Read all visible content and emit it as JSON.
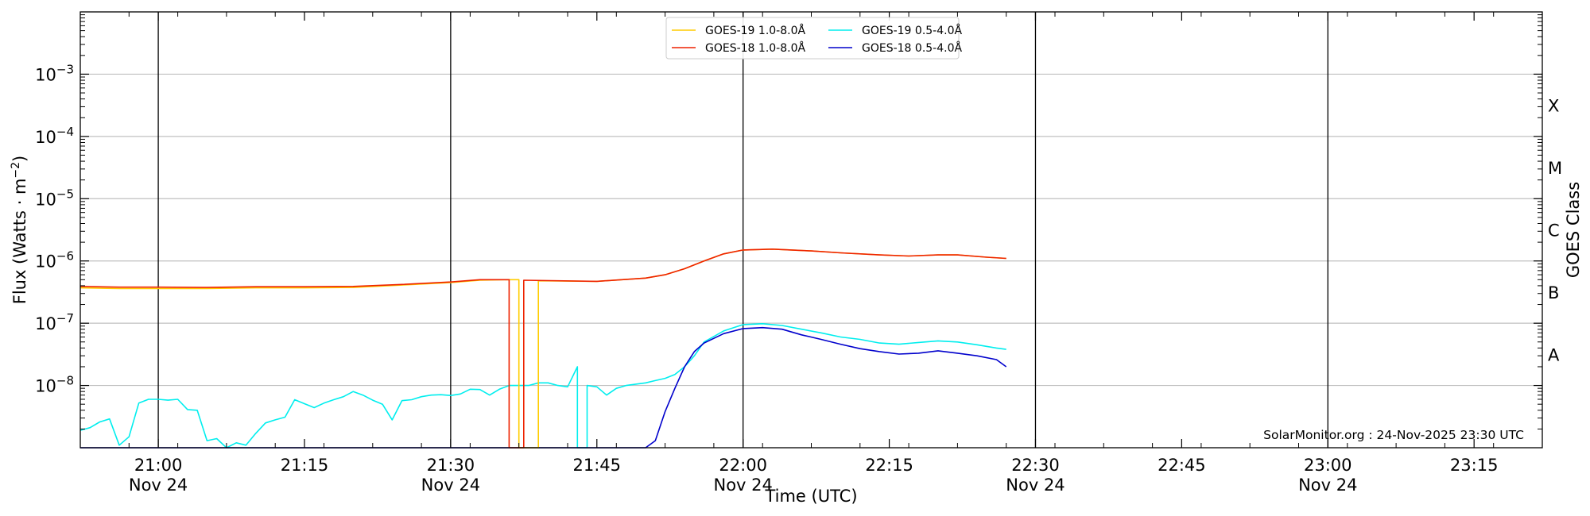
{
  "chart_data": {
    "type": "line",
    "ylabel": "Flux (Watts · m",
    "ylabel_sup": "−2",
    "ylabel_close": ")",
    "xlabel": "Time (UTC)",
    "right_label": "GOES Class",
    "y_scale": "log",
    "ylim": [
      1e-09,
      0.01
    ],
    "xlim": [
      "20:52",
      "23:22"
    ],
    "grid": "horizontal",
    "legend_position": "top-center",
    "y_ticks": [
      {
        "value": 1e-08,
        "base": "10",
        "exp": "−8"
      },
      {
        "value": 1e-07,
        "base": "10",
        "exp": "−7"
      },
      {
        "value": 1e-06,
        "base": "10",
        "exp": "−6"
      },
      {
        "value": 1e-05,
        "base": "10",
        "exp": "−5"
      },
      {
        "value": 0.0001,
        "base": "10",
        "exp": "−4"
      },
      {
        "value": 0.001,
        "base": "10",
        "exp": "−3"
      }
    ],
    "x_ticks": [
      {
        "time": "21:00",
        "label": "21:00",
        "sub": "Nov 24",
        "major": true
      },
      {
        "time": "21:15",
        "label": "21:15",
        "sub": "",
        "major": false
      },
      {
        "time": "21:30",
        "label": "21:30",
        "sub": "Nov 24",
        "major": true
      },
      {
        "time": "21:45",
        "label": "21:45",
        "sub": "",
        "major": false
      },
      {
        "time": "22:00",
        "label": "22:00",
        "sub": "Nov 24",
        "major": true
      },
      {
        "time": "22:15",
        "label": "22:15",
        "sub": "",
        "major": false
      },
      {
        "time": "22:30",
        "label": "22:30",
        "sub": "Nov 24",
        "major": true
      },
      {
        "time": "22:45",
        "label": "22:45",
        "sub": "",
        "major": false
      },
      {
        "time": "23:00",
        "label": "23:00",
        "sub": "Nov 24",
        "major": true
      },
      {
        "time": "23:15",
        "label": "23:15",
        "sub": "",
        "major": false
      }
    ],
    "goes_classes": [
      {
        "label": "A",
        "value": 1e-08
      },
      {
        "label": "B",
        "value": 1e-07
      },
      {
        "label": "C",
        "value": 1e-06
      },
      {
        "label": "M",
        "value": 1e-05
      },
      {
        "label": "X",
        "value": 0.0001
      }
    ],
    "annotation": "SolarMonitor.org : 24-Nov-2025 23:30 UTC",
    "series": [
      {
        "name": "GOES-19 1.0-8.0Å",
        "color": "#ffcc00",
        "points": [
          [
            "20:52",
            3.7e-07
          ],
          [
            "20:56",
            3.6e-07
          ],
          [
            "21:00",
            3.6e-07
          ],
          [
            "21:05",
            3.6e-07
          ],
          [
            "21:10",
            3.7e-07
          ],
          [
            "21:15",
            3.7e-07
          ],
          [
            "21:20",
            3.75e-07
          ],
          [
            "21:25",
            4.1e-07
          ],
          [
            "21:30",
            4.5e-07
          ],
          [
            "21:33",
            4.9e-07
          ],
          [
            "21:36",
            5e-07
          ],
          [
            "21:37",
            5e-07
          ],
          [
            "21:37",
            1e-09
          ],
          [
            "21:39",
            1e-09
          ],
          [
            "21:39",
            4.8e-07
          ],
          [
            "21:45",
            4.7e-07
          ],
          [
            "21:50",
            5.3e-07
          ],
          [
            "21:52",
            6e-07
          ],
          [
            "21:54",
            7.5e-07
          ],
          [
            "21:56",
            1e-06
          ],
          [
            "21:58",
            1.3e-06
          ],
          [
            "22:00",
            1.5e-06
          ],
          [
            "22:03",
            1.55e-06
          ],
          [
            "22:07",
            1.45e-06
          ],
          [
            "22:10",
            1.35e-06
          ],
          [
            "22:14",
            1.25e-06
          ],
          [
            "22:17",
            1.2e-06
          ],
          [
            "22:20",
            1.25e-06
          ],
          [
            "22:22",
            1.25e-06
          ],
          [
            "22:25",
            1.15e-06
          ],
          [
            "22:27",
            1.1e-06
          ]
        ]
      },
      {
        "name": "GOES-18 1.0-8.0Å",
        "color": "#ee2200",
        "points": [
          [
            "20:52",
            3.9e-07
          ],
          [
            "20:56",
            3.8e-07
          ],
          [
            "21:00",
            3.8e-07
          ],
          [
            "21:05",
            3.75e-07
          ],
          [
            "21:10",
            3.85e-07
          ],
          [
            "21:15",
            3.85e-07
          ],
          [
            "21:20",
            3.9e-07
          ],
          [
            "21:25",
            4.2e-07
          ],
          [
            "21:30",
            4.6e-07
          ],
          [
            "21:33",
            5e-07
          ],
          [
            "21:36",
            5e-07
          ],
          [
            "21:36",
            1e-09
          ],
          [
            "21:37.5",
            1e-09
          ],
          [
            "21:37.5",
            4.9e-07
          ],
          [
            "21:45",
            4.7e-07
          ],
          [
            "21:50",
            5.3e-07
          ],
          [
            "21:52",
            6e-07
          ],
          [
            "21:54",
            7.5e-07
          ],
          [
            "21:56",
            1e-06
          ],
          [
            "21:58",
            1.3e-06
          ],
          [
            "22:00",
            1.5e-06
          ],
          [
            "22:03",
            1.55e-06
          ],
          [
            "22:07",
            1.45e-06
          ],
          [
            "22:10",
            1.35e-06
          ],
          [
            "22:14",
            1.25e-06
          ],
          [
            "22:17",
            1.2e-06
          ],
          [
            "22:20",
            1.25e-06
          ],
          [
            "22:22",
            1.25e-06
          ],
          [
            "22:25",
            1.15e-06
          ],
          [
            "22:27",
            1.1e-06
          ]
        ]
      },
      {
        "name": "GOES-19 0.5-4.0Å",
        "color": "#00eeee",
        "points": [
          [
            "20:52",
            1.9e-09
          ],
          [
            "20:53",
            2.1e-09
          ],
          [
            "20:54",
            2.6e-09
          ],
          [
            "20:55",
            2.9e-09
          ],
          [
            "20:56",
            1.1e-09
          ],
          [
            "20:57",
            1.5e-09
          ],
          [
            "20:58",
            5.2e-09
          ],
          [
            "20:59",
            6e-09
          ],
          [
            "21:00",
            6e-09
          ],
          [
            "21:01",
            5.8e-09
          ],
          [
            "21:02",
            6e-09
          ],
          [
            "21:03",
            4.1e-09
          ],
          [
            "21:04",
            4e-09
          ],
          [
            "21:05",
            1.3e-09
          ],
          [
            "21:06",
            1.4e-09
          ],
          [
            "21:07",
            1e-09
          ],
          [
            "21:08",
            1.2e-09
          ],
          [
            "21:09",
            1.1e-09
          ],
          [
            "21:10",
            1.7e-09
          ],
          [
            "21:11",
            2.5e-09
          ],
          [
            "21:12",
            2.8e-09
          ],
          [
            "21:13",
            3.1e-09
          ],
          [
            "21:14",
            5.9e-09
          ],
          [
            "21:16",
            4.4e-09
          ],
          [
            "21:17",
            5.2e-09
          ],
          [
            "21:18",
            5.9e-09
          ],
          [
            "21:19",
            6.6e-09
          ],
          [
            "21:20",
            8e-09
          ],
          [
            "21:21",
            7e-09
          ],
          [
            "21:22",
            5.8e-09
          ],
          [
            "21:23",
            5e-09
          ],
          [
            "21:24",
            2.8e-09
          ],
          [
            "21:25",
            5.7e-09
          ],
          [
            "21:26",
            5.9e-09
          ],
          [
            "21:27",
            6.6e-09
          ],
          [
            "21:28",
            7e-09
          ],
          [
            "21:29",
            7.1e-09
          ],
          [
            "21:30",
            6.9e-09
          ],
          [
            "21:31",
            7.3e-09
          ],
          [
            "21:32",
            8.7e-09
          ],
          [
            "21:33",
            8.6e-09
          ],
          [
            "21:34",
            7e-09
          ],
          [
            "21:35",
            8.7e-09
          ],
          [
            "21:36",
            1e-08
          ],
          [
            "21:37",
            1e-08
          ],
          [
            "21:38",
            1e-08
          ],
          [
            "21:39",
            1.1e-08
          ],
          [
            "21:40",
            1.1e-08
          ],
          [
            "21:41",
            1e-08
          ],
          [
            "21:42",
            9.5e-09
          ],
          [
            "21:43",
            2e-08
          ],
          [
            "21:43",
            1e-09
          ],
          [
            "21:44",
            1e-09
          ],
          [
            "21:44",
            1e-08
          ],
          [
            "21:45",
            9.5e-09
          ],
          [
            "21:46",
            7e-09
          ],
          [
            "21:47",
            9e-09
          ],
          [
            "21:48",
            1e-08
          ],
          [
            "21:49",
            1.05e-08
          ],
          [
            "21:50",
            1.1e-08
          ],
          [
            "21:51",
            1.2e-08
          ],
          [
            "21:52",
            1.3e-08
          ],
          [
            "21:53",
            1.5e-08
          ],
          [
            "21:54",
            2e-08
          ],
          [
            "21:55",
            3e-08
          ],
          [
            "21:56",
            5e-08
          ],
          [
            "21:58",
            7.5e-08
          ],
          [
            "22:00",
            9.5e-08
          ],
          [
            "22:02",
            9.8e-08
          ],
          [
            "22:04",
            9.2e-08
          ],
          [
            "22:06",
            8e-08
          ],
          [
            "22:08",
            7e-08
          ],
          [
            "22:10",
            6e-08
          ],
          [
            "22:12",
            5.5e-08
          ],
          [
            "22:14",
            4.8e-08
          ],
          [
            "22:16",
            4.6e-08
          ],
          [
            "22:18",
            4.9e-08
          ],
          [
            "22:20",
            5.2e-08
          ],
          [
            "22:22",
            5e-08
          ],
          [
            "22:24",
            4.5e-08
          ],
          [
            "22:26",
            4e-08
          ],
          [
            "22:27",
            3.8e-08
          ]
        ]
      },
      {
        "name": "GOES-18 0.5-4.0Å",
        "color": "#0000cc",
        "points": [
          [
            "20:52",
            1e-09
          ],
          [
            "21:36",
            1e-09
          ],
          [
            "21:50",
            1e-09
          ],
          [
            "21:51",
            1.3e-09
          ],
          [
            "21:52",
            3.8e-09
          ],
          [
            "21:53",
            9e-09
          ],
          [
            "21:54",
            2e-08
          ],
          [
            "21:55",
            3.5e-08
          ],
          [
            "21:56",
            4.8e-08
          ],
          [
            "21:58",
            6.8e-08
          ],
          [
            "22:00",
            8.2e-08
          ],
          [
            "22:02",
            8.5e-08
          ],
          [
            "22:04",
            8e-08
          ],
          [
            "22:06",
            6.5e-08
          ],
          [
            "22:08",
            5.5e-08
          ],
          [
            "22:10",
            4.6e-08
          ],
          [
            "22:12",
            3.9e-08
          ],
          [
            "22:14",
            3.5e-08
          ],
          [
            "22:16",
            3.2e-08
          ],
          [
            "22:18",
            3.3e-08
          ],
          [
            "22:20",
            3.6e-08
          ],
          [
            "22:22",
            3.3e-08
          ],
          [
            "22:24",
            3e-08
          ],
          [
            "22:26",
            2.6e-08
          ],
          [
            "22:27",
            2e-08
          ]
        ]
      }
    ]
  }
}
